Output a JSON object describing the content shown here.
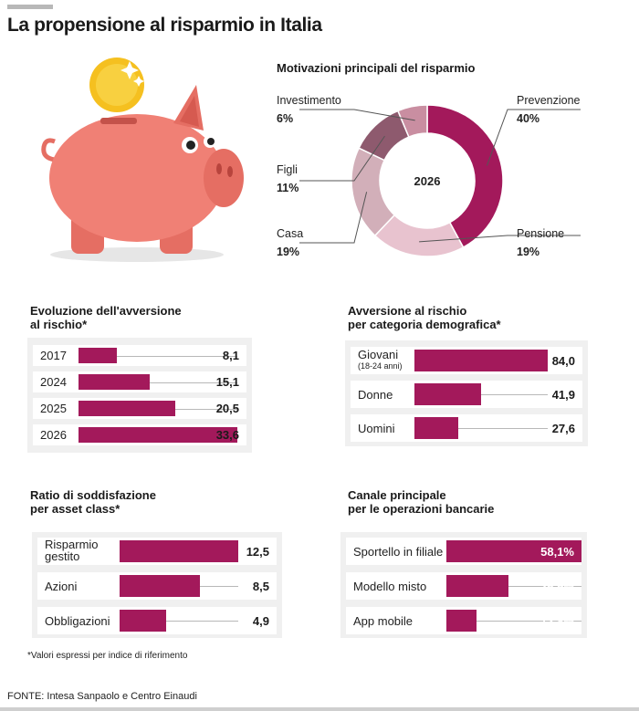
{
  "title": "La propensione al risparmio in Italia",
  "colors": {
    "accent": "#a3195b",
    "panel": "#f0f0f0",
    "pig": "#f08075",
    "coin": "#f5c020"
  },
  "illustration": {
    "name": "piggy-bank-with-coin"
  },
  "donut": {
    "title": "Motivazioni principali del risparmio",
    "center_label": "2026"
  },
  "evoluzione": {
    "title_line1": "Evoluzione dell'avversione",
    "title_line2": "al rischio*"
  },
  "demografica": {
    "title_line1": "Avversione al rischio",
    "title_line2": "per categoria demografica*"
  },
  "soddisfazione": {
    "title_line1": "Ratio di soddisfazione",
    "title_line2": "per asset class*"
  },
  "canale": {
    "title_line1": "Canale principale",
    "title_line2": "per le operazioni bancarie"
  },
  "footnote": "*Valori espressi per indice di riferimento",
  "source": "FONTE: Intesa Sanpaolo e Centro Einaudi",
  "chart_data": [
    {
      "type": "pie",
      "title": "Motivazioni principali del risparmio",
      "center_label": "2026",
      "categories": [
        "Prevenzione",
        "Pensione",
        "Casa",
        "Figli",
        "Investimento"
      ],
      "values": [
        40,
        19,
        19,
        11,
        6
      ],
      "value_labels": [
        "40%",
        "19%",
        "19%",
        "11%",
        "6%"
      ],
      "colors": [
        "#a3195b",
        "#e8c3cf",
        "#d2afb9",
        "#8e5a6e",
        "#c98ea1"
      ]
    },
    {
      "type": "bar",
      "title": "Evoluzione dell'avversione al rischio*",
      "categories": [
        "2017",
        "2024",
        "2025",
        "2026"
      ],
      "values": [
        8.1,
        15.1,
        20.5,
        33.6
      ],
      "value_labels": [
        "8,1",
        "15,1",
        "20,5",
        "33,6"
      ],
      "xlim": [
        0,
        33.6
      ]
    },
    {
      "type": "bar",
      "title": "Avversione al rischio per categoria demografica*",
      "categories": [
        "Giovani",
        "Donne",
        "Uomini"
      ],
      "category_notes": [
        "(18-24 anni)",
        "",
        ""
      ],
      "values": [
        84.0,
        41.9,
        27.6
      ],
      "value_labels": [
        "84,0",
        "41,9",
        "27,6"
      ],
      "xlim": [
        0,
        84.0
      ]
    },
    {
      "type": "bar",
      "title": "Ratio di soddisfazione per asset class*",
      "categories": [
        "Risparmio gestito",
        "Azioni",
        "Obbligazioni"
      ],
      "category_lines": [
        [
          "Risparmio",
          "gestito"
        ],
        [
          "Azioni"
        ],
        [
          "Obbligazioni"
        ]
      ],
      "values": [
        12.5,
        8.5,
        4.9
      ],
      "value_labels": [
        "12,5",
        "8,5",
        "4,9"
      ],
      "xlim": [
        0,
        12.5
      ]
    },
    {
      "type": "bar",
      "title": "Canale principale per le operazioni bancarie",
      "categories": [
        "Sportello in filiale",
        "Modello misto",
        "App mobile"
      ],
      "values": [
        58.1,
        26.5,
        12.8
      ],
      "value_labels": [
        "58,1%",
        "26,5%",
        "12,8%"
      ],
      "xlim": [
        0,
        58.1
      ]
    }
  ]
}
